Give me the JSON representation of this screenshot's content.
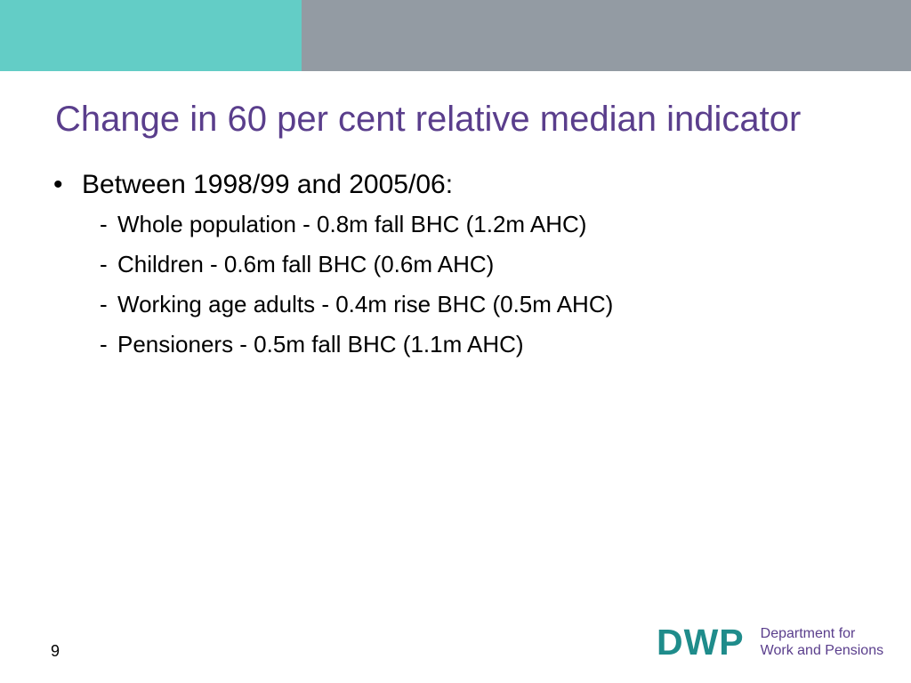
{
  "slide": {
    "title": "Change in 60 per cent relative median indicator",
    "bullet": {
      "marker": "•",
      "text": "Between 1998/99 and 2005/06:",
      "sub_marker": "-",
      "sub_items": [
        "Whole population - 0.8m fall BHC (1.2m AHC)",
        "Children - 0.6m fall BHC (0.6m AHC)",
        "Working age adults - 0.4m rise BHC (0.5m AHC)",
        "Pensioners - 0.5m fall BHC (1.1m AHC)"
      ]
    },
    "page_number": "9"
  },
  "logo": {
    "mark": "DWP",
    "line1": "Department for",
    "line2": "Work and Pensions"
  },
  "colors": {
    "header_teal": "#63cdc6",
    "header_grey": "#939ba3",
    "title": "#5a3e8c",
    "logo_mark": "#1f8c8b"
  }
}
